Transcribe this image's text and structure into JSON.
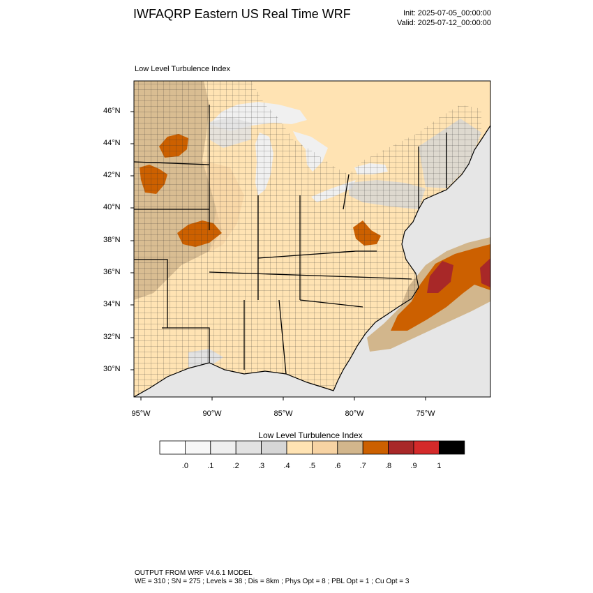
{
  "header": {
    "title": "IWFAQRP Eastern US Real Time WRF",
    "init": "Init: 2025-07-05_00:00:00",
    "valid": "Valid: 2025-07-12_00:00:00"
  },
  "map": {
    "label": "Low Level Turbulence Index",
    "lat_labels": [
      "46°N",
      "44°N",
      "42°N",
      "40°N",
      "38°N",
      "36°N",
      "34°N",
      "32°N",
      "30°N"
    ],
    "lon_labels": [
      "95°W",
      "90°W",
      "85°W",
      "80°W",
      "75°W"
    ],
    "colors": {
      "ocean": "#e6e6e6",
      "land_base": "#ffe3b3",
      "lake": "#f0f0f0",
      "plains": "#d2b68c",
      "hotspot": "#cc6000",
      "maximum": "#a82828"
    }
  },
  "colorbar": {
    "title": "Low Level Turbulence Index",
    "levels": [
      ".0",
      ".1",
      ".2",
      ".3",
      ".4",
      ".5",
      ".6",
      ".7",
      ".8",
      ".9",
      "1"
    ],
    "colors": [
      "#ffffff",
      "#f7f7f7",
      "#efefef",
      "#e2e2e2",
      "#d6d6d6",
      "#ffe3b3",
      "#f7d3a3",
      "#d2b68c",
      "#cc6000",
      "#a82828",
      "#d42a2a",
      "#000000"
    ]
  },
  "footer": {
    "line1": "OUTPUT FROM WRF V4.6.1 MODEL",
    "line2": "WE = 310 ; SN = 275 ; Levels = 38 ; Dis = 8km ; Phys Opt = 8 ; PBL Opt = 1 ; Cu Opt = 3"
  }
}
